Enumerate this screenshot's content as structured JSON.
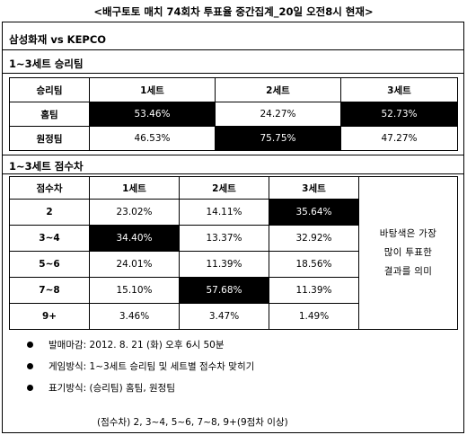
{
  "title": "<배구토토 매치 74회차 투표율 중간집계_20일 오전8시 현재>",
  "match": "삼성화재 vs KEPCO",
  "section1": {
    "title": "1~3세트 승리팀",
    "headers": [
      "승리팀",
      "1세트",
      "2세트",
      "3세트"
    ],
    "rows": [
      {
        "label": "홈팀",
        "values": [
          "53.46%",
          "24.27%",
          "52.73%"
        ]
      },
      {
        "label": "원정팀",
        "values": [
          "46.53%",
          "75.75%",
          "47.27%"
        ]
      }
    ]
  },
  "section2": {
    "title": "1~3세트 점수차",
    "headers": [
      "점수차",
      "1세트",
      "2세트",
      "3세트"
    ],
    "rows": [
      {
        "label": "2",
        "values": [
          "23.02%",
          "14.11%",
          "35.64%"
        ]
      },
      {
        "label": "3~4",
        "values": [
          "34.40%",
          "13.37%",
          "32.92%"
        ]
      },
      {
        "label": "5~6",
        "values": [
          "24.01%",
          "11.39%",
          "18.56%"
        ]
      },
      {
        "label": "7~8",
        "values": [
          "15.10%",
          "57.68%",
          "11.39%"
        ]
      },
      {
        "label": "9+",
        "values": [
          "3.46%",
          "3.47%",
          "1.49%"
        ]
      }
    ],
    "note": [
      "바탕색은 가장",
      "많이 투표한",
      "결과를 의미"
    ]
  },
  "bullets": [
    "발매마감: 2012. 8. 21 (화) 오후 6시 50분",
    "게임방식: 1~3세트 승리팀 및 세트별 점수차 맞히기",
    "표기방식: (승리팀) 홈팀, 원정팀"
  ],
  "subnote": "(점수차) 2, 3~4, 5~6, 7~8, 9+(9점차 이상)"
}
